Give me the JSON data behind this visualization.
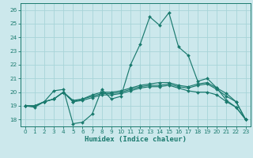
{
  "title": "",
  "xlabel": "Humidex (Indice chaleur)",
  "xlim": [
    -0.5,
    23.5
  ],
  "ylim": [
    17.5,
    26.5
  ],
  "yticks": [
    18,
    19,
    20,
    21,
    22,
    23,
    24,
    25,
    26
  ],
  "xticks": [
    0,
    1,
    2,
    3,
    4,
    5,
    6,
    7,
    8,
    9,
    10,
    11,
    12,
    13,
    14,
    15,
    16,
    17,
    18,
    19,
    20,
    21,
    22,
    23
  ],
  "bg_color": "#cce8ec",
  "grid_color": "#a8d4d8",
  "line_color": "#1a7a6e",
  "series": [
    [
      19.0,
      18.9,
      19.3,
      20.1,
      20.2,
      17.7,
      17.8,
      18.4,
      20.2,
      19.5,
      19.7,
      22.0,
      23.5,
      25.5,
      24.9,
      25.8,
      23.3,
      22.7,
      20.8,
      21.0,
      20.3,
      19.4,
      18.9,
      18.0
    ],
    [
      19.0,
      19.0,
      19.3,
      19.5,
      20.0,
      19.3,
      19.5,
      19.8,
      20.0,
      20.0,
      20.1,
      20.3,
      20.5,
      20.6,
      20.7,
      20.7,
      20.5,
      20.4,
      20.6,
      20.7,
      20.3,
      19.9,
      19.3,
      18.0
    ],
    [
      19.0,
      19.0,
      19.3,
      19.5,
      20.0,
      19.4,
      19.5,
      19.7,
      19.9,
      19.9,
      20.0,
      20.2,
      20.4,
      20.5,
      20.5,
      20.6,
      20.4,
      20.3,
      20.5,
      20.6,
      20.2,
      19.7,
      19.3,
      18.0
    ],
    [
      19.0,
      19.0,
      19.3,
      19.5,
      20.0,
      19.3,
      19.4,
      19.6,
      19.8,
      19.8,
      19.9,
      20.1,
      20.3,
      20.4,
      20.4,
      20.5,
      20.3,
      20.1,
      20.0,
      20.0,
      19.8,
      19.3,
      18.9,
      18.0
    ]
  ]
}
